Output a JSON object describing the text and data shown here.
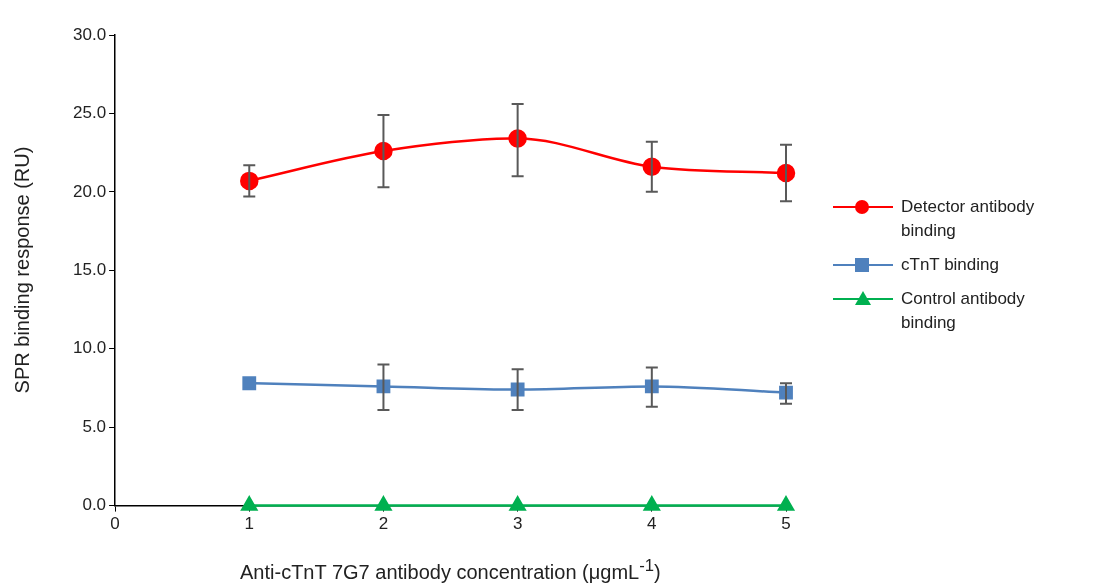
{
  "chart_data": {
    "type": "line",
    "xlabel": "Anti-cTnT 7G7 antibody concentration (μgmL$^{-1}$)",
    "ylabel": "SPR binding response (RU)",
    "x": [
      1,
      2,
      3,
      4,
      5
    ],
    "xlim": [
      0,
      5
    ],
    "xticks": [
      0,
      1,
      2,
      3,
      4,
      5
    ],
    "ylim": [
      0,
      30
    ],
    "yticks": [
      {
        "value": 0,
        "label": "0.0"
      },
      {
        "value": 5,
        "label": "5.0"
      },
      {
        "value": 10,
        "label": "10.0"
      },
      {
        "value": 15,
        "label": "15.0"
      },
      {
        "value": 20,
        "label": "20.0"
      },
      {
        "value": 25,
        "label": "25.0"
      },
      {
        "value": 30,
        "label": "30.0"
      }
    ],
    "grid": false,
    "legend": "right",
    "series": [
      {
        "name": "Detector antibody binding",
        "color": "#ff0000",
        "marker": "circle",
        "values": [
          20.7,
          22.6,
          23.4,
          21.6,
          21.2
        ],
        "errors": [
          [
            19.7,
            21.7
          ],
          [
            20.3,
            24.9
          ],
          [
            21.0,
            25.6
          ],
          [
            20.0,
            23.2
          ],
          [
            19.4,
            23.0
          ]
        ]
      },
      {
        "name": "cTnT binding",
        "color": "#4f81bd",
        "marker": "square",
        "values": [
          7.8,
          7.6,
          7.4,
          7.6,
          7.2
        ],
        "errors": [
          null,
          [
            6.1,
            9.0
          ],
          [
            6.1,
            8.7
          ],
          [
            6.3,
            8.8
          ],
          [
            6.5,
            7.8
          ]
        ]
      },
      {
        "name": "Control antibody binding",
        "color": "#00b050",
        "marker": "triangle",
        "values": [
          0,
          0,
          0,
          0,
          0
        ]
      }
    ]
  }
}
